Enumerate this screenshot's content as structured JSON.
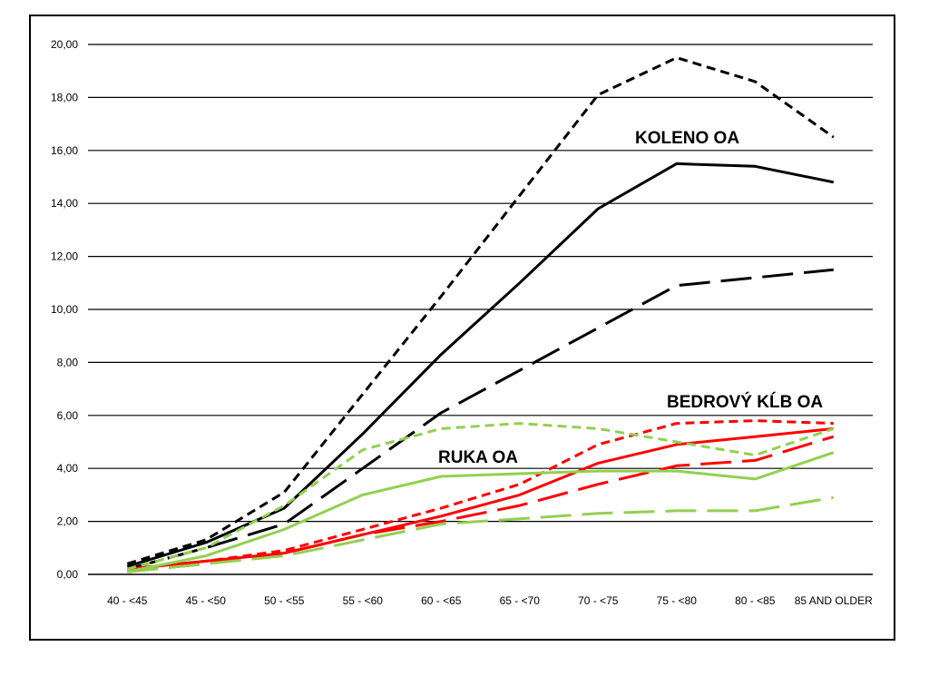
{
  "chart_data": {
    "type": "line",
    "categories": [
      "40 - <45",
      "45 - <50",
      "50 - <55",
      "55 - <60",
      "60 - <65",
      "65 - <70",
      "70 - <75",
      "75 - <80",
      "80 - <85",
      "85 AND OLDER"
    ],
    "ylim": [
      0,
      20
    ],
    "yticks": [
      "0,00",
      "2,00",
      "4,00",
      "6,00",
      "8,00",
      "10,00",
      "12,00",
      "14,00",
      "16,00",
      "18,00",
      "20,00"
    ],
    "grid": true,
    "annotations": [
      {
        "text": "KOLENO OA",
        "near": "black-series"
      },
      {
        "text": "BEDROVÝ KĹB OA",
        "near": "red-series"
      },
      {
        "text": "RUKA OA",
        "near": "green-series"
      }
    ],
    "series": [
      {
        "color": "#000000",
        "dash": "short",
        "values": [
          0.4,
          1.3,
          3.1,
          6.8,
          10.5,
          14.3,
          18.1,
          19.5,
          18.6,
          16.5
        ]
      },
      {
        "color": "#000000",
        "dash": "solid",
        "values": [
          0.3,
          1.2,
          2.5,
          5.3,
          8.3,
          11.0,
          13.8,
          15.5,
          15.4,
          14.8
        ]
      },
      {
        "color": "#000000",
        "dash": "long",
        "values": [
          0.2,
          1.0,
          1.9,
          4.0,
          6.1,
          7.7,
          9.3,
          10.9,
          11.2,
          11.5
        ]
      },
      {
        "color": "#ff0000",
        "dash": "short",
        "values": [
          0.2,
          0.5,
          0.9,
          1.7,
          2.5,
          3.4,
          4.9,
          5.7,
          5.8,
          5.7
        ]
      },
      {
        "color": "#ff0000",
        "dash": "solid",
        "values": [
          0.2,
          0.5,
          0.8,
          1.5,
          2.2,
          3.0,
          4.2,
          4.9,
          5.2,
          5.5
        ]
      },
      {
        "color": "#ff0000",
        "dash": "long",
        "values": [
          0.1,
          0.4,
          0.8,
          1.5,
          2.0,
          2.6,
          3.4,
          4.1,
          4.3,
          5.2
        ]
      },
      {
        "color": "#92d050",
        "dash": "short",
        "values": [
          0.2,
          1.0,
          2.6,
          4.7,
          5.5,
          5.7,
          5.5,
          5.0,
          4.5,
          5.5
        ]
      },
      {
        "color": "#92d050",
        "dash": "solid",
        "values": [
          0.1,
          0.7,
          1.7,
          3.0,
          3.7,
          3.8,
          3.9,
          3.9,
          3.6,
          4.6
        ]
      },
      {
        "color": "#92d050",
        "dash": "long",
        "values": [
          0.1,
          0.4,
          0.7,
          1.3,
          1.9,
          2.1,
          2.3,
          2.4,
          2.4,
          2.9
        ]
      }
    ]
  }
}
